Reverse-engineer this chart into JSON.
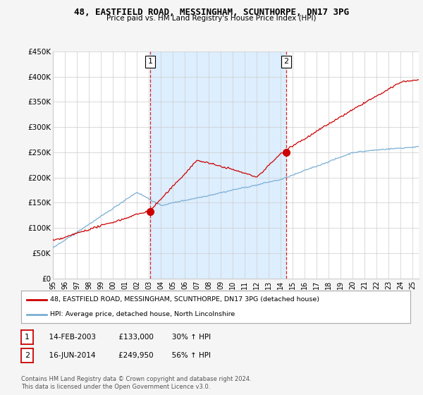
{
  "title": "48, EASTFIELD ROAD, MESSINGHAM, SCUNTHORPE, DN17 3PG",
  "subtitle": "Price paid vs. HM Land Registry's House Price Index (HPI)",
  "ylim": [
    0,
    450000
  ],
  "xlim_start": 1995.0,
  "xlim_end": 2025.5,
  "yticks": [
    0,
    50000,
    100000,
    150000,
    200000,
    250000,
    300000,
    350000,
    400000,
    450000
  ],
  "ytick_labels": [
    "£0",
    "£50K",
    "£100K",
    "£150K",
    "£200K",
    "£250K",
    "£300K",
    "£350K",
    "£400K",
    "£450K"
  ],
  "xticks": [
    1995,
    1996,
    1997,
    1998,
    1999,
    2000,
    2001,
    2002,
    2003,
    2004,
    2005,
    2006,
    2007,
    2008,
    2009,
    2010,
    2011,
    2012,
    2013,
    2014,
    2015,
    2016,
    2017,
    2018,
    2019,
    2020,
    2021,
    2022,
    2023,
    2024,
    2025
  ],
  "xtick_labels": [
    "95",
    "96",
    "97",
    "98",
    "99",
    "00",
    "01",
    "02",
    "03",
    "04",
    "05",
    "06",
    "07",
    "08",
    "09",
    "10",
    "11",
    "12",
    "13",
    "14",
    "15",
    "16",
    "17",
    "18",
    "19",
    "20",
    "21",
    "22",
    "23",
    "24",
    "25"
  ],
  "red_color": "#cc0000",
  "blue_color": "#7bafd4",
  "shade_color": "#ddeeff",
  "sale1_year": 2003.12,
  "sale1_price": 133000,
  "sale2_year": 2014.46,
  "sale2_price": 249950,
  "legend_line1": "48, EASTFIELD ROAD, MESSINGHAM, SCUNTHORPE, DN17 3PG (detached house)",
  "legend_line2": "HPI: Average price, detached house, North Lincolnshire",
  "table_row1": [
    "1",
    "14-FEB-2003",
    "£133,000",
    "30% ↑ HPI"
  ],
  "table_row2": [
    "2",
    "16-JUN-2014",
    "£249,950",
    "56% ↑ HPI"
  ],
  "footnote": "Contains HM Land Registry data © Crown copyright and database right 2024.\nThis data is licensed under the Open Government Licence v3.0.",
  "background_color": "#f5f5f5",
  "plot_bg_color": "#ffffff"
}
